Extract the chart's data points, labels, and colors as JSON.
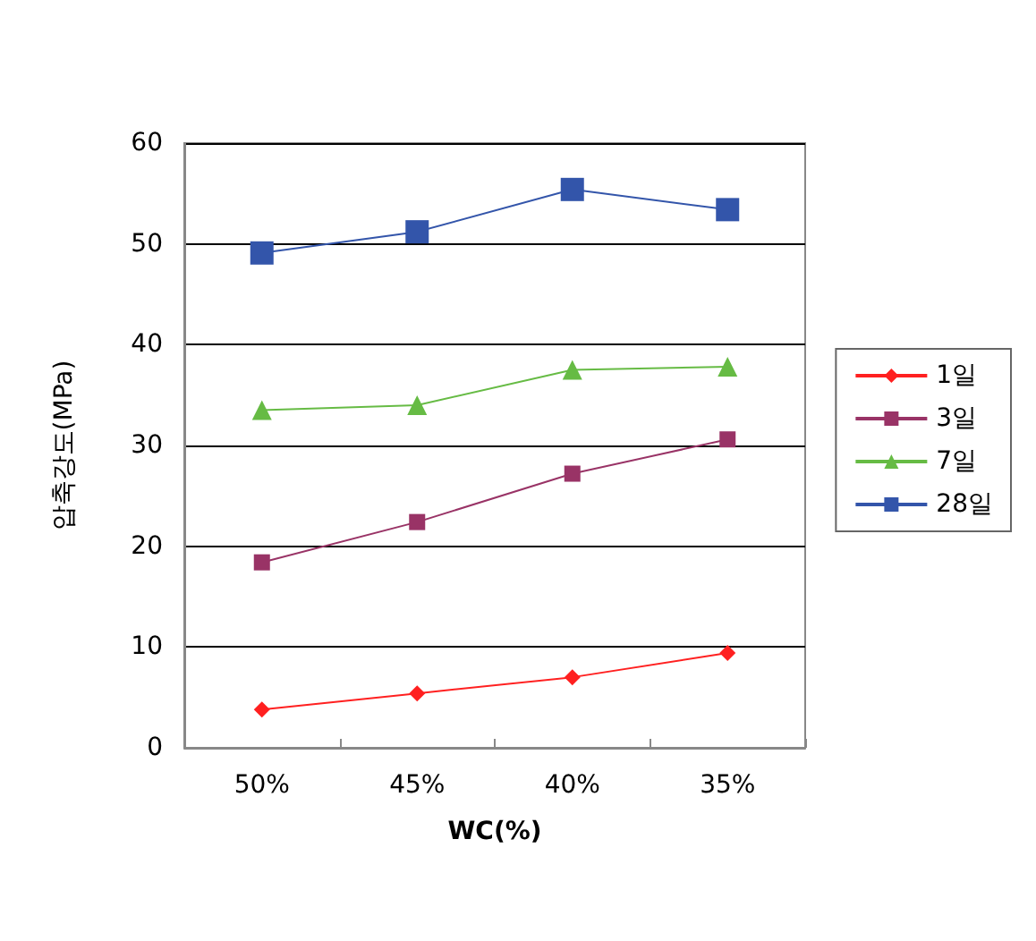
{
  "chart_data": {
    "type": "line",
    "xlabel": "WC(%)",
    "ylabel": "압축강도(MPa)",
    "categories": [
      "50%",
      "45%",
      "40%",
      "35%"
    ],
    "series": [
      {
        "name": "1일",
        "color": "#ff2020",
        "marker": "diamond",
        "values": [
          3.8,
          5.4,
          7.0,
          9.4
        ]
      },
      {
        "name": "3일",
        "color": "#993366",
        "marker": "square",
        "values": [
          18.4,
          22.4,
          27.2,
          30.6
        ]
      },
      {
        "name": "7일",
        "color": "#66bb44",
        "marker": "triangle",
        "values": [
          33.5,
          34.0,
          37.5,
          37.8
        ]
      },
      {
        "name": "28일",
        "color": "#3355aa",
        "marker": "square",
        "values": [
          49.1,
          51.2,
          55.4,
          53.4
        ]
      }
    ],
    "ylim": [
      0,
      60
    ],
    "yticks": [
      0,
      10,
      20,
      30,
      40,
      50,
      60
    ],
    "grid": "y",
    "legend": "right"
  }
}
